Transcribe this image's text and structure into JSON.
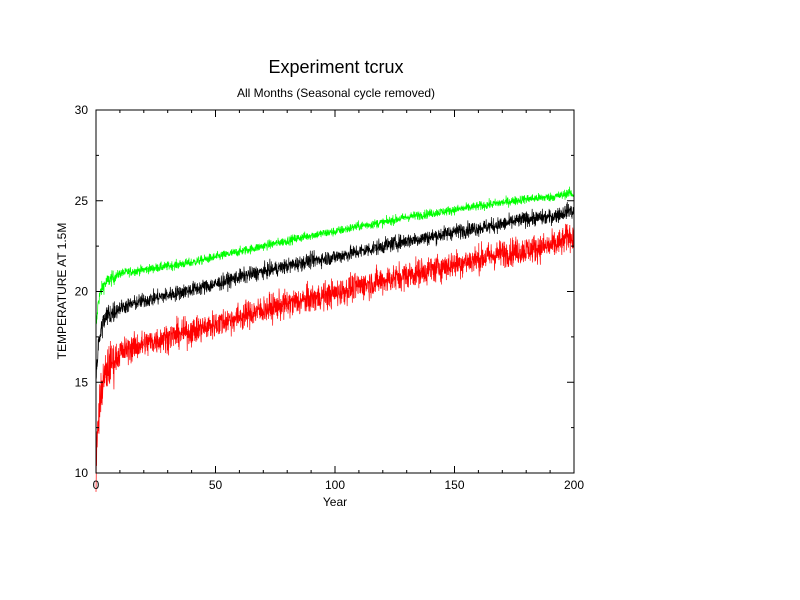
{
  "chart_data": {
    "type": "line",
    "title": "Experiment tcrux",
    "subtitle": "All Months (Seasonal cycle removed)",
    "xlabel": "Year",
    "ylabel": "TEMPERATURE AT 1.5M",
    "xlim": [
      0,
      200
    ],
    "ylim": [
      10,
      30
    ],
    "x_ticks": [
      0,
      50,
      100,
      150,
      200
    ],
    "y_ticks": [
      10,
      15,
      20,
      25,
      30
    ],
    "grid": false,
    "legend": "none",
    "series": [
      {
        "color": "#00ff00",
        "noise": 0.18,
        "x": [
          0,
          1,
          2,
          3,
          5,
          8,
          10,
          15,
          20,
          30,
          40,
          50,
          60,
          70,
          80,
          90,
          100,
          110,
          120,
          130,
          140,
          150,
          160,
          170,
          180,
          190,
          195,
          198,
          200
        ],
        "y": [
          17.9,
          19.5,
          20.0,
          20.3,
          20.6,
          20.8,
          21.0,
          21.1,
          21.2,
          21.4,
          21.6,
          21.9,
          22.2,
          22.5,
          22.8,
          23.1,
          23.3,
          23.6,
          23.8,
          24.1,
          24.3,
          24.5,
          24.7,
          24.9,
          25.1,
          25.2,
          25.3,
          25.45,
          25.3
        ]
      },
      {
        "color": "#000000",
        "noise": 0.3,
        "x": [
          0,
          1,
          2,
          3,
          5,
          8,
          10,
          15,
          20,
          30,
          40,
          50,
          60,
          70,
          80,
          90,
          100,
          110,
          120,
          130,
          140,
          150,
          160,
          170,
          180,
          190,
          195,
          198,
          200
        ],
        "y": [
          15.3,
          17.0,
          17.8,
          18.3,
          18.7,
          18.9,
          19.1,
          19.3,
          19.5,
          19.8,
          20.1,
          20.4,
          20.8,
          21.1,
          21.4,
          21.7,
          21.9,
          22.2,
          22.5,
          22.8,
          23.0,
          23.3,
          23.5,
          23.7,
          24.0,
          24.1,
          24.3,
          24.5,
          24.3
        ]
      },
      {
        "color": "#ff0000",
        "noise": 0.55,
        "x": [
          0,
          1,
          2,
          3,
          5,
          8,
          10,
          15,
          20,
          30,
          40,
          50,
          60,
          70,
          80,
          90,
          100,
          110,
          120,
          130,
          140,
          150,
          160,
          170,
          180,
          190,
          195,
          198,
          200
        ],
        "y": [
          10.2,
          13.0,
          14.3,
          15.0,
          15.8,
          16.3,
          16.6,
          16.9,
          17.1,
          17.5,
          17.8,
          18.2,
          18.6,
          19.0,
          19.3,
          19.6,
          19.9,
          20.3,
          20.6,
          20.9,
          21.2,
          21.5,
          21.8,
          22.1,
          22.3,
          22.5,
          22.7,
          23.1,
          23.0
        ]
      }
    ]
  }
}
